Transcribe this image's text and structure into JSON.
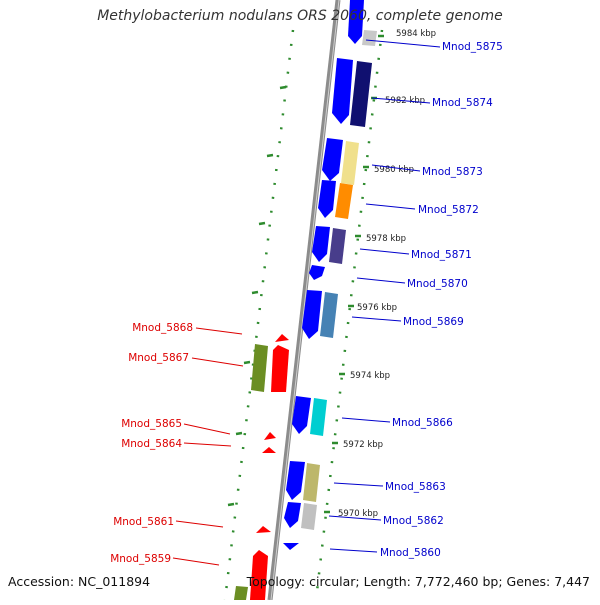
{
  "title": "Methylobacterium nodulans ORS 2060, complete genome",
  "footer": {
    "accession": "Accession: NC_011894",
    "summary": "Topology: circular; Length: 7,772,460 bp; Genes: 7,447"
  },
  "colors": {
    "strand_line": "#8c8c8c",
    "tick_dots": "#2e8b2e",
    "forward_gene": "#0000ff",
    "reverse_gene": "#ff0000",
    "forward_label": "#0000cc",
    "reverse_label": "#dd0000"
  },
  "ticks": [
    "5984 kbp",
    "5982 kbp",
    "5980 kbp",
    "5978 kbp",
    "5976 kbp",
    "5974 kbp",
    "5972 kbp",
    "5970 kbp"
  ],
  "genes_right": [
    "Mnod_5875",
    "Mnod_5874",
    "Mnod_5873",
    "Mnod_5872",
    "Mnod_5871",
    "Mnod_5870",
    "Mnod_5869",
    "Mnod_5866",
    "Mnod_5863",
    "Mnod_5862",
    "Mnod_5860"
  ],
  "genes_left": [
    "Mnod_5868",
    "Mnod_5867",
    "Mnod_5865",
    "Mnod_5864",
    "Mnod_5861",
    "Mnod_5859"
  ]
}
